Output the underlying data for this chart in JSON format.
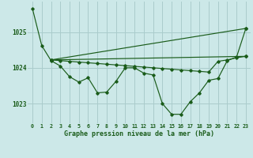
{
  "title": "Graphe pression niveau de la mer (hPa)",
  "bg": "#cce8e8",
  "grid_color": "#aacccc",
  "lc": "#1a5c1a",
  "xlim": [
    -0.5,
    23.5
  ],
  "ylim": [
    1022.45,
    1025.85
  ],
  "yticks": [
    1023,
    1024,
    1025
  ],
  "xticks": [
    0,
    1,
    2,
    3,
    4,
    5,
    6,
    7,
    8,
    9,
    10,
    11,
    12,
    13,
    14,
    15,
    16,
    17,
    18,
    19,
    20,
    21,
    22,
    23
  ],
  "line1_x": [
    0,
    1,
    2,
    3,
    4,
    5,
    6,
    7,
    8,
    9,
    10,
    11,
    12,
    13,
    14,
    15,
    16,
    17,
    18,
    19,
    20,
    21,
    22,
    23
  ],
  "line1_y": [
    1025.65,
    1024.62,
    1024.2,
    1024.05,
    1023.75,
    1023.6,
    1023.72,
    1023.3,
    1023.32,
    1023.62,
    1024.0,
    1024.0,
    1023.85,
    1023.8,
    1023.0,
    1022.7,
    1022.7,
    1023.05,
    1023.3,
    1023.65,
    1023.7,
    1024.2,
    1024.3,
    1025.1
  ],
  "line2_x": [
    2,
    3,
    4,
    5,
    6,
    7,
    8,
    9,
    10,
    11,
    12,
    13,
    14,
    15,
    16,
    17,
    18,
    19,
    20,
    21,
    22,
    23
  ],
  "line2_y": [
    1024.22,
    1024.2,
    1024.18,
    1024.16,
    1024.14,
    1024.12,
    1024.1,
    1024.08,
    1024.06,
    1024.04,
    1024.02,
    1024.0,
    1023.98,
    1023.96,
    1023.94,
    1023.92,
    1023.9,
    1023.88,
    1024.18,
    1024.22,
    1024.28,
    1024.32
  ],
  "line3_x": [
    2,
    23
  ],
  "line3_y": [
    1024.22,
    1025.1
  ],
  "line4_x": [
    2,
    23
  ],
  "line4_y": [
    1024.22,
    1024.32
  ]
}
